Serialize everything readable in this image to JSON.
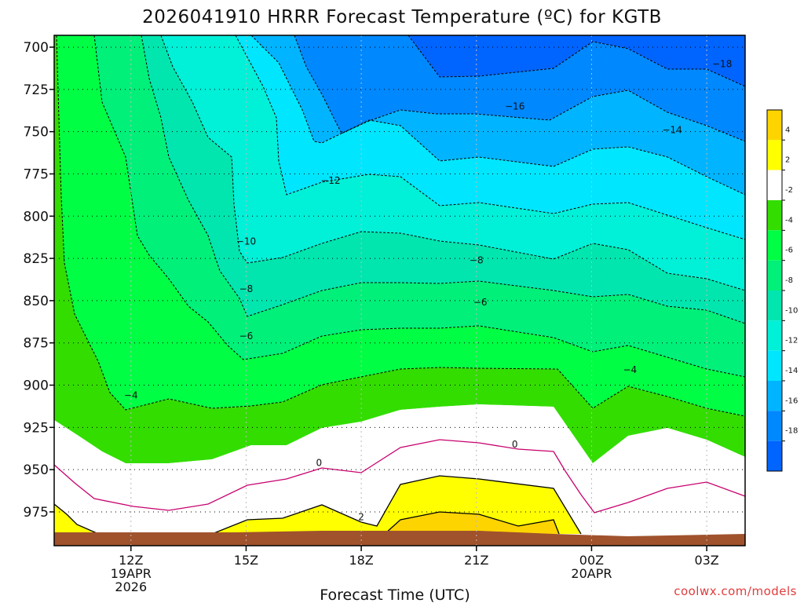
{
  "chart_data": {
    "type": "heatmap",
    "title": "2026041910 HRRR Forecast Temperature (ºC) for KGTB",
    "xlabel": "Forecast Time (UTC)",
    "ylabel": "",
    "y_ticks": [
      "700",
      "725",
      "750",
      "775",
      "800",
      "825",
      "850",
      "875",
      "900",
      "925",
      "950",
      "975"
    ],
    "y_values": [
      700,
      725,
      750,
      775,
      800,
      825,
      850,
      875,
      900,
      925,
      950,
      975
    ],
    "ylim": [
      693,
      995
    ],
    "x_ticks": [
      {
        "hour": 12,
        "lines": [
          "12Z",
          "19APR",
          "2026"
        ]
      },
      {
        "hour": 15,
        "lines": [
          "15Z"
        ]
      },
      {
        "hour": 18,
        "lines": [
          "18Z"
        ]
      },
      {
        "hour": 21,
        "lines": [
          "21Z"
        ]
      },
      {
        "hour": 24,
        "lines": [
          "00Z",
          "20APR"
        ]
      },
      {
        "hour": 27,
        "lines": [
          "03Z"
        ]
      }
    ],
    "xlim": [
      10,
      28
    ],
    "grid": true,
    "colorbar": {
      "labels": [
        "4",
        "2",
        "-2",
        "-4",
        "-6",
        "-8",
        "-10",
        "-12",
        "-14",
        "-16",
        "-18"
      ],
      "colors": [
        "#fdd400",
        "#ffff00",
        "#ffffff",
        "#33dd00",
        "#00ff44",
        "#00f07a",
        "#00e6ae",
        "#00f0d8",
        "#00e6ff",
        "#00b4ff",
        "#0088ff",
        "#0064ff"
      ]
    },
    "ground_color": "#a0522d",
    "zero_line_color": "#c8006e",
    "contour_labels": [
      {
        "text": "−18",
        "hour": 27.4,
        "p": 710
      },
      {
        "text": "−16",
        "hour": 22.0,
        "p": 735
      },
      {
        "text": "−14",
        "hour": 26.1,
        "p": 749
      },
      {
        "text": "−12",
        "hour": 17.2,
        "p": 779
      },
      {
        "text": "−10",
        "hour": 15.0,
        "p": 815
      },
      {
        "text": "−8",
        "hour": 15.0,
        "p": 843
      },
      {
        "text": "−8",
        "hour": 21.0,
        "p": 826
      },
      {
        "text": "−6",
        "hour": 15.0,
        "p": 871
      },
      {
        "text": "−6",
        "hour": 21.1,
        "p": 851
      },
      {
        "text": "−4",
        "hour": 12.0,
        "p": 906
      },
      {
        "text": "−4",
        "hour": 25.0,
        "p": 891
      },
      {
        "text": "0",
        "hour": 22.0,
        "p": 935
      },
      {
        "text": "0",
        "hour": 16.9,
        "p": 946
      },
      {
        "text": "2",
        "hour": 18.0,
        "p": 978
      }
    ]
  },
  "credit": "coolwx.com/models"
}
